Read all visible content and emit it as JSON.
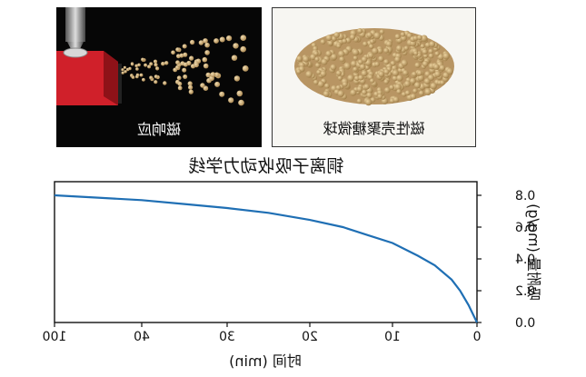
{
  "left_panel": {
    "caption": "磁响应"
  },
  "right_panel": {
    "caption": "磁性壳聚糖微球"
  },
  "colors": {
    "bead": "#c9a46c",
    "bead_dark": "#a8854f",
    "magnet_red": "#d0202a",
    "line": "#1f6fb4"
  },
  "chart_data": {
    "type": "line",
    "title": "铜离子吸收动力学线",
    "xlabel": "时间 (min)",
    "ylabel": "吸附量 (mg/g)",
    "x_ticks": [
      "0",
      "10",
      "20",
      "30",
      "40",
      "100"
    ],
    "y_ticks": [
      "0.0",
      "0.2",
      "0.4",
      "0.6",
      "0.8"
    ],
    "ylim": [
      0,
      0.8
    ],
    "series": [
      {
        "color": "#1f6fb4",
        "x": [
          0,
          1,
          2,
          3,
          5,
          7,
          10,
          13,
          16,
          20,
          25,
          30,
          35,
          40,
          45,
          50
        ],
        "y": [
          0.0,
          0.11,
          0.2,
          0.27,
          0.36,
          0.42,
          0.5,
          0.55,
          0.6,
          0.645,
          0.69,
          0.72,
          0.745,
          0.77,
          0.785,
          0.8
        ]
      }
    ]
  }
}
